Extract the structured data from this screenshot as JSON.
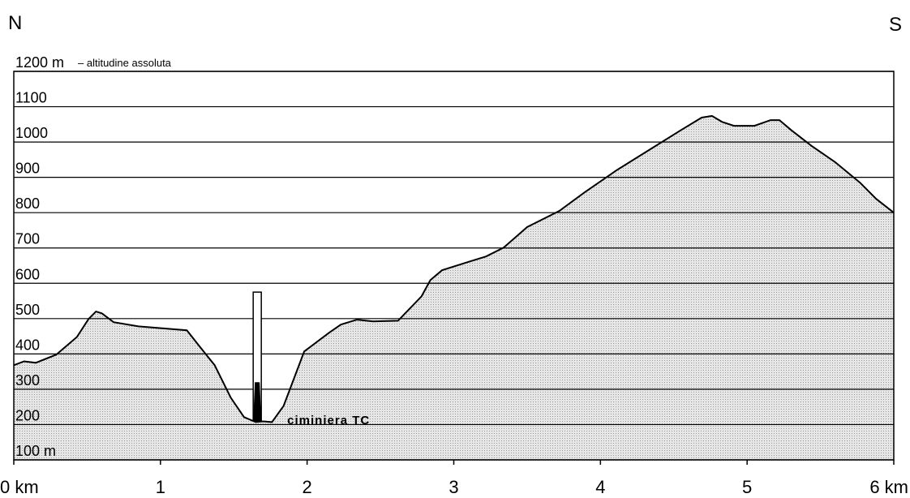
{
  "chart_data": {
    "type": "area",
    "left_label": "N",
    "right_label": "S",
    "y_annotation": "– altitudine assoluta",
    "chimney_label": "ciminiera TC",
    "x": [
      0,
      0.07,
      0.15,
      0.29,
      0.43,
      0.51,
      0.56,
      0.6,
      0.68,
      0.85,
      1.18,
      1.26,
      1.37,
      1.48,
      1.57,
      1.65,
      1.7,
      1.76,
      1.84,
      1.98,
      2.15,
      2.23,
      2.34,
      2.45,
      2.62,
      2.78,
      2.84,
      2.92,
      3.11,
      3.22,
      3.34,
      3.5,
      3.72,
      3.89,
      4.11,
      4.33,
      4.55,
      4.69,
      4.76,
      4.83,
      4.91,
      5.05,
      5.16,
      5.22,
      5.3,
      5.44,
      5.6,
      5.77,
      5.88,
      6.0
    ],
    "values": [
      368,
      379,
      375,
      398,
      448,
      499,
      520,
      515,
      490,
      478,
      467,
      425,
      368,
      276,
      221,
      207,
      209,
      207,
      253,
      407,
      460,
      483,
      497,
      492,
      494,
      563,
      609,
      637,
      662,
      676,
      701,
      759,
      805,
      857,
      920,
      977,
      1034,
      1069,
      1074,
      1057,
      1046,
      1046,
      1062,
      1062,
      1034,
      989,
      943,
      885,
      839,
      800
    ],
    "color": "#d4d4d4",
    "chimney": {
      "x": 1.66,
      "base": 210,
      "top": 575,
      "dark_top": 320
    },
    "xlim": [
      0,
      6
    ],
    "ylim": [
      100,
      1200
    ],
    "xticks": [
      {
        "value": 0,
        "label": "0 km"
      },
      1,
      2,
      3,
      4,
      5,
      {
        "value": 6,
        "label": "6 km"
      }
    ],
    "yticks": [
      {
        "value": 1200,
        "label": "1200 m"
      },
      1100,
      1000,
      900,
      800,
      700,
      600,
      500,
      400,
      300,
      200,
      {
        "value": 100,
        "label": "100 m"
      }
    ],
    "grid": true
  }
}
